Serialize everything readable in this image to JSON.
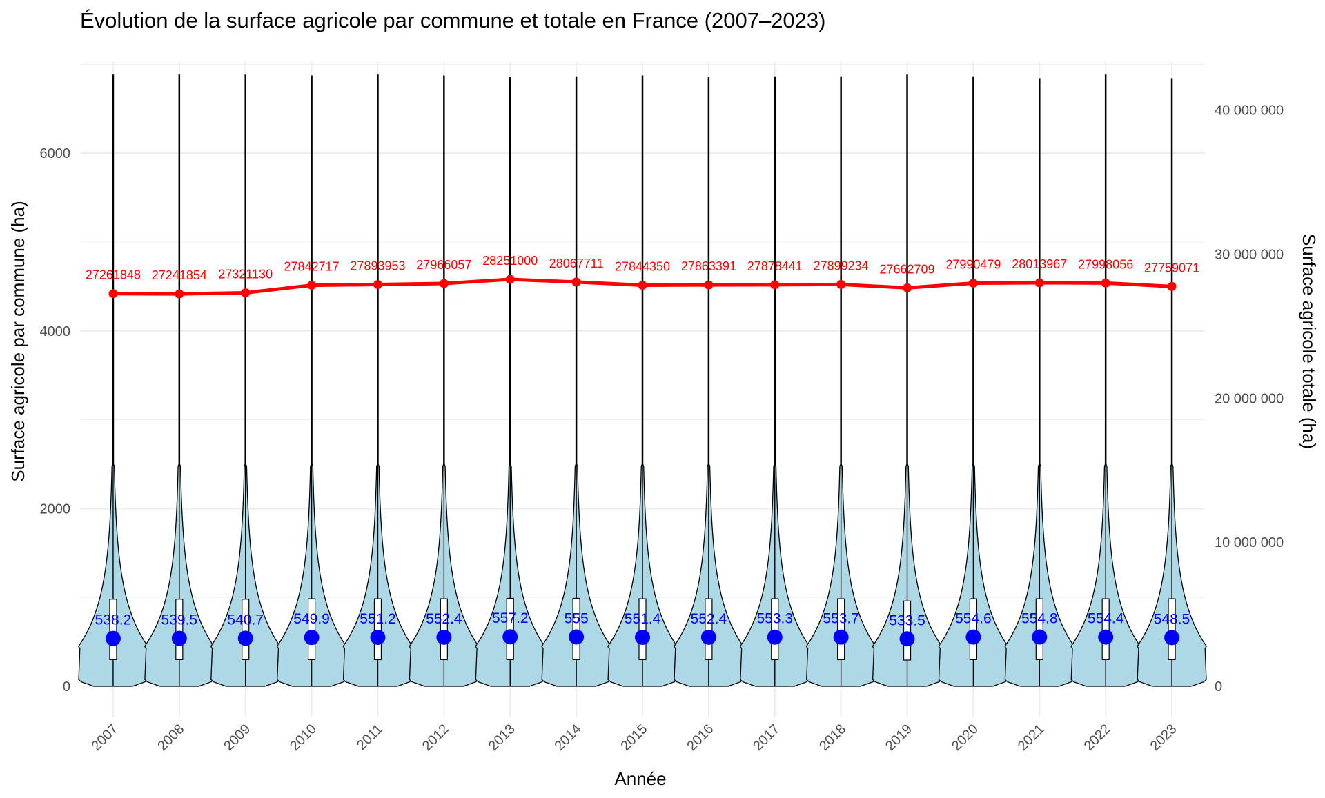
{
  "chart_data": {
    "type": "violin",
    "title": "Évolution de la surface agricole par commune et totale en France (2007–2023)",
    "xlabel": "Année",
    "ylabel": "Surface agricole par commune (ha)",
    "y2label": "Surface agricole totale (ha)",
    "categories": [
      "2007",
      "2008",
      "2009",
      "2010",
      "2011",
      "2012",
      "2013",
      "2014",
      "2015",
      "2016",
      "2017",
      "2018",
      "2019",
      "2020",
      "2021",
      "2022",
      "2023"
    ],
    "ylim": [
      -330,
      6950
    ],
    "y_ticks": [
      0,
      2000,
      4000,
      6000
    ],
    "y_tick_labels": [
      "0",
      "2000",
      "4000",
      "6000"
    ],
    "y2_ticks": [
      0,
      10000000,
      20000000,
      30000000,
      40000000
    ],
    "y2_tick_labels": [
      "0",
      "10 000 000",
      "20 000 000",
      "30 000 000",
      "40 000 000"
    ],
    "grid": true,
    "per_commune_mean": {
      "values": [
        538.2,
        539.5,
        540.7,
        549.9,
        551.2,
        552.4,
        557.2,
        555,
        551.4,
        552.4,
        553.3,
        553.7,
        533.5,
        554.6,
        554.8,
        554.4,
        548.5
      ],
      "labels": [
        "538.2",
        "539.5",
        "540.7",
        "549.9",
        "551.2",
        "552.4",
        "557.2",
        "555",
        "551.4",
        "552.4",
        "553.3",
        "553.7",
        "533.5",
        "554.6",
        "554.8",
        "554.4",
        "548.5"
      ],
      "color": "#0000ff"
    },
    "per_commune_distribution": {
      "q1": [
        300,
        300,
        300,
        300,
        300,
        300,
        300,
        300,
        300,
        300,
        300,
        300,
        295,
        300,
        300,
        300,
        300
      ],
      "q3": [
        980,
        980,
        980,
        985,
        985,
        985,
        990,
        990,
        985,
        985,
        985,
        985,
        960,
        985,
        985,
        985,
        985
      ],
      "max": [
        6880,
        6880,
        6880,
        6870,
        6880,
        6870,
        6850,
        6860,
        6870,
        6850,
        6860,
        6860,
        6880,
        6860,
        6840,
        6880,
        6840
      ],
      "fill": "#add8e6"
    },
    "total": {
      "values": [
        27261848,
        27241854,
        27321130,
        27842717,
        27893953,
        27966057,
        28251000,
        28067711,
        27844350,
        27863391,
        27878441,
        27899234,
        27662709,
        27990479,
        28013967,
        27998056,
        27759071
      ],
      "labels": [
        "27261848",
        "27241854",
        "27321130",
        "27842717",
        "27893953",
        "27966057",
        "28251000",
        "28067711",
        "27844350",
        "27863391",
        "27878441",
        "27899234",
        "27662709",
        "27990479",
        "28013967",
        "27998056",
        "27759071"
      ],
      "color": "#ff0000"
    }
  }
}
